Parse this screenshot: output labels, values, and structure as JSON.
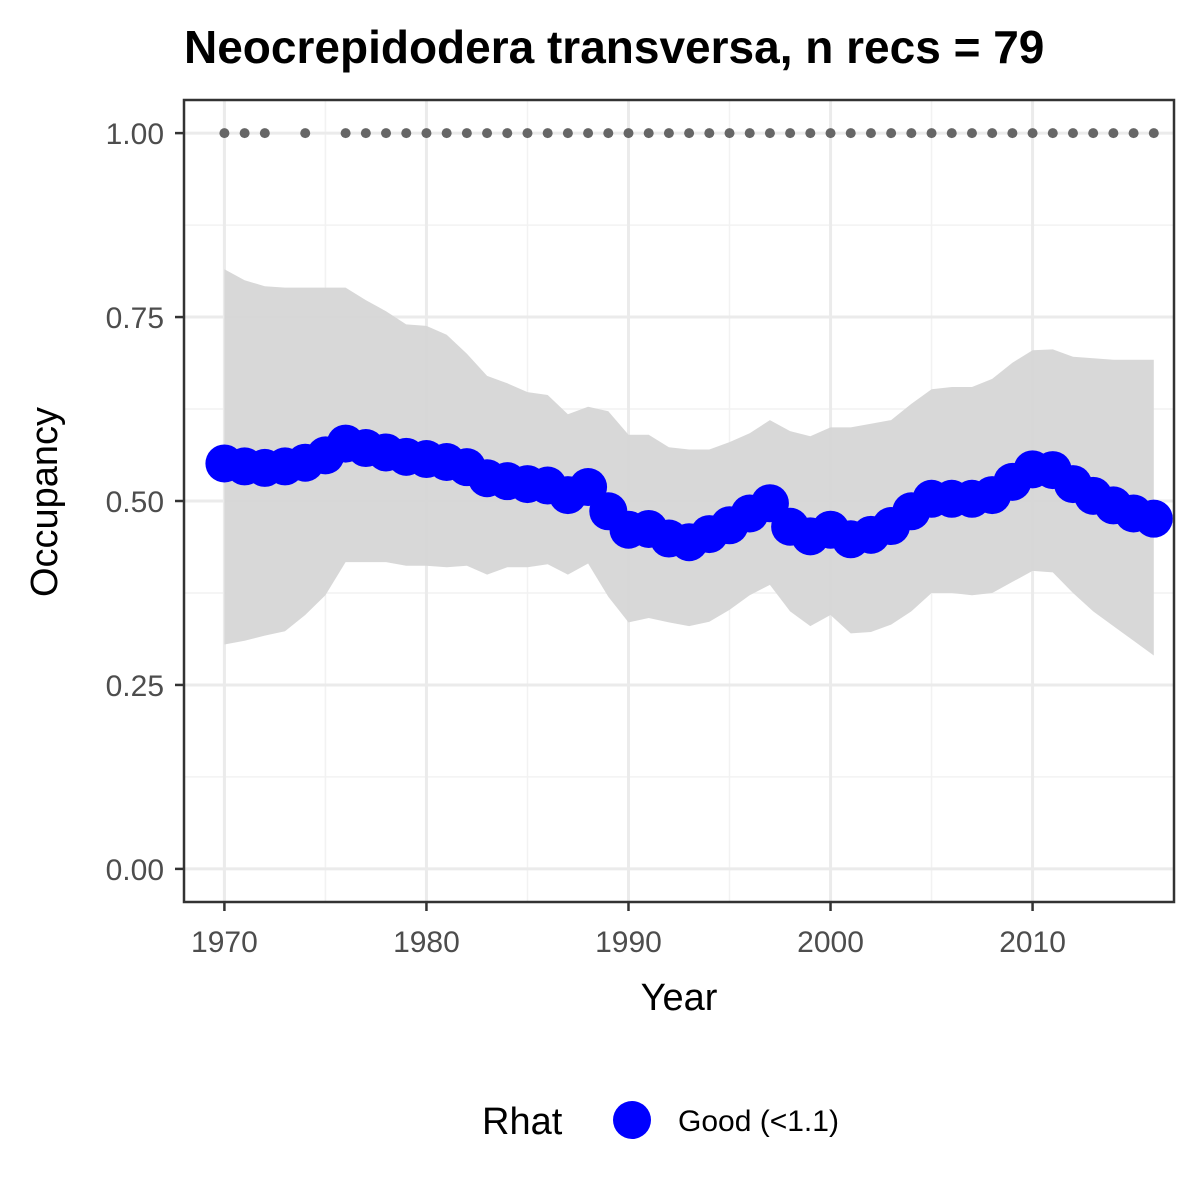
{
  "chart_data": {
    "type": "line",
    "title": "Neocrepidodera transversa, n recs = 79",
    "xlabel": "Year",
    "ylabel": "Occupancy",
    "xlim": [
      1968,
      2017
    ],
    "ylim": [
      -0.045,
      1.045
    ],
    "x_ticks": [
      1970,
      1980,
      1990,
      2000,
      2010
    ],
    "y_ticks": [
      0.0,
      0.25,
      0.5,
      0.75,
      1.0
    ],
    "y_tick_labels": [
      "0.00",
      "0.25",
      "0.50",
      "0.75",
      "1.00"
    ],
    "grid": true,
    "legend": {
      "title": "Rhat",
      "position": "bottom",
      "entries": [
        {
          "label": "Good (<1.1)",
          "color": "#0000ff"
        }
      ]
    },
    "series": [
      {
        "type": "line_points",
        "color": "#0000ff",
        "x": [
          1970,
          1971,
          1972,
          1973,
          1974,
          1975,
          1976,
          1977,
          1978,
          1979,
          1980,
          1981,
          1982,
          1983,
          1984,
          1985,
          1986,
          1987,
          1988,
          1989,
          1990,
          1991,
          1992,
          1993,
          1994,
          1995,
          1996,
          1997,
          1998,
          1999,
          2000,
          2001,
          2002,
          2003,
          2004,
          2005,
          2006,
          2007,
          2008,
          2009,
          2010,
          2011,
          2012,
          2013,
          2014,
          2015,
          2016
        ],
        "y": [
          0.551,
          0.547,
          0.545,
          0.547,
          0.552,
          0.562,
          0.578,
          0.572,
          0.566,
          0.56,
          0.557,
          0.553,
          0.546,
          0.531,
          0.527,
          0.523,
          0.521,
          0.508,
          0.519,
          0.486,
          0.461,
          0.462,
          0.449,
          0.444,
          0.455,
          0.467,
          0.483,
          0.497,
          0.465,
          0.452,
          0.461,
          0.448,
          0.454,
          0.466,
          0.486,
          0.503,
          0.503,
          0.503,
          0.508,
          0.526,
          0.543,
          0.542,
          0.523,
          0.507,
          0.494,
          0.483,
          0.476
        ]
      },
      {
        "type": "ribbon",
        "color": "#d6d6d6",
        "x": [
          1970,
          1971,
          1972,
          1973,
          1974,
          1975,
          1976,
          1977,
          1978,
          1979,
          1980,
          1981,
          1982,
          1983,
          1984,
          1985,
          1986,
          1987,
          1988,
          1989,
          1990,
          1991,
          1992,
          1993,
          1994,
          1995,
          1996,
          1997,
          1998,
          1999,
          2000,
          2001,
          2002,
          2003,
          2004,
          2005,
          2006,
          2007,
          2008,
          2009,
          2010,
          2011,
          2012,
          2013,
          2014,
          2015,
          2016
        ],
        "lower": [
          0.305,
          0.31,
          0.317,
          0.323,
          0.345,
          0.372,
          0.417,
          0.417,
          0.417,
          0.412,
          0.412,
          0.41,
          0.412,
          0.4,
          0.41,
          0.41,
          0.414,
          0.4,
          0.415,
          0.37,
          0.335,
          0.341,
          0.335,
          0.33,
          0.336,
          0.352,
          0.372,
          0.386,
          0.35,
          0.33,
          0.345,
          0.32,
          0.322,
          0.332,
          0.35,
          0.375,
          0.375,
          0.372,
          0.375,
          0.39,
          0.405,
          0.403,
          0.375,
          0.35,
          0.33,
          0.31,
          0.29
        ],
        "upper": [
          0.815,
          0.8,
          0.792,
          0.79,
          0.79,
          0.79,
          0.79,
          0.773,
          0.758,
          0.74,
          0.738,
          0.726,
          0.7,
          0.67,
          0.66,
          0.648,
          0.644,
          0.618,
          0.628,
          0.622,
          0.59,
          0.59,
          0.573,
          0.57,
          0.57,
          0.58,
          0.592,
          0.61,
          0.595,
          0.588,
          0.6,
          0.6,
          0.605,
          0.61,
          0.632,
          0.652,
          0.655,
          0.655,
          0.666,
          0.688,
          0.705,
          0.706,
          0.696,
          0.694,
          0.692,
          0.692,
          0.692
        ]
      },
      {
        "type": "points",
        "color": "#666666",
        "x": [
          1970,
          1971,
          1972,
          1974,
          1976,
          1977,
          1978,
          1979,
          1980,
          1981,
          1982,
          1983,
          1984,
          1985,
          1986,
          1987,
          1988,
          1989,
          1990,
          1991,
          1992,
          1993,
          1994,
          1995,
          1996,
          1997,
          1998,
          1999,
          2000,
          2001,
          2002,
          2003,
          2004,
          2005,
          2006,
          2007,
          2008,
          2009,
          2010,
          2011,
          2012,
          2013,
          2014,
          2015,
          2016
        ],
        "y": [
          1,
          1,
          1,
          1,
          1,
          1,
          1,
          1,
          1,
          1,
          1,
          1,
          1,
          1,
          1,
          1,
          1,
          1,
          1,
          1,
          1,
          1,
          1,
          1,
          1,
          1,
          1,
          1,
          1,
          1,
          1,
          1,
          1,
          1,
          1,
          1,
          1,
          1,
          1,
          1,
          1,
          1,
          1,
          1,
          1
        ]
      }
    ]
  }
}
